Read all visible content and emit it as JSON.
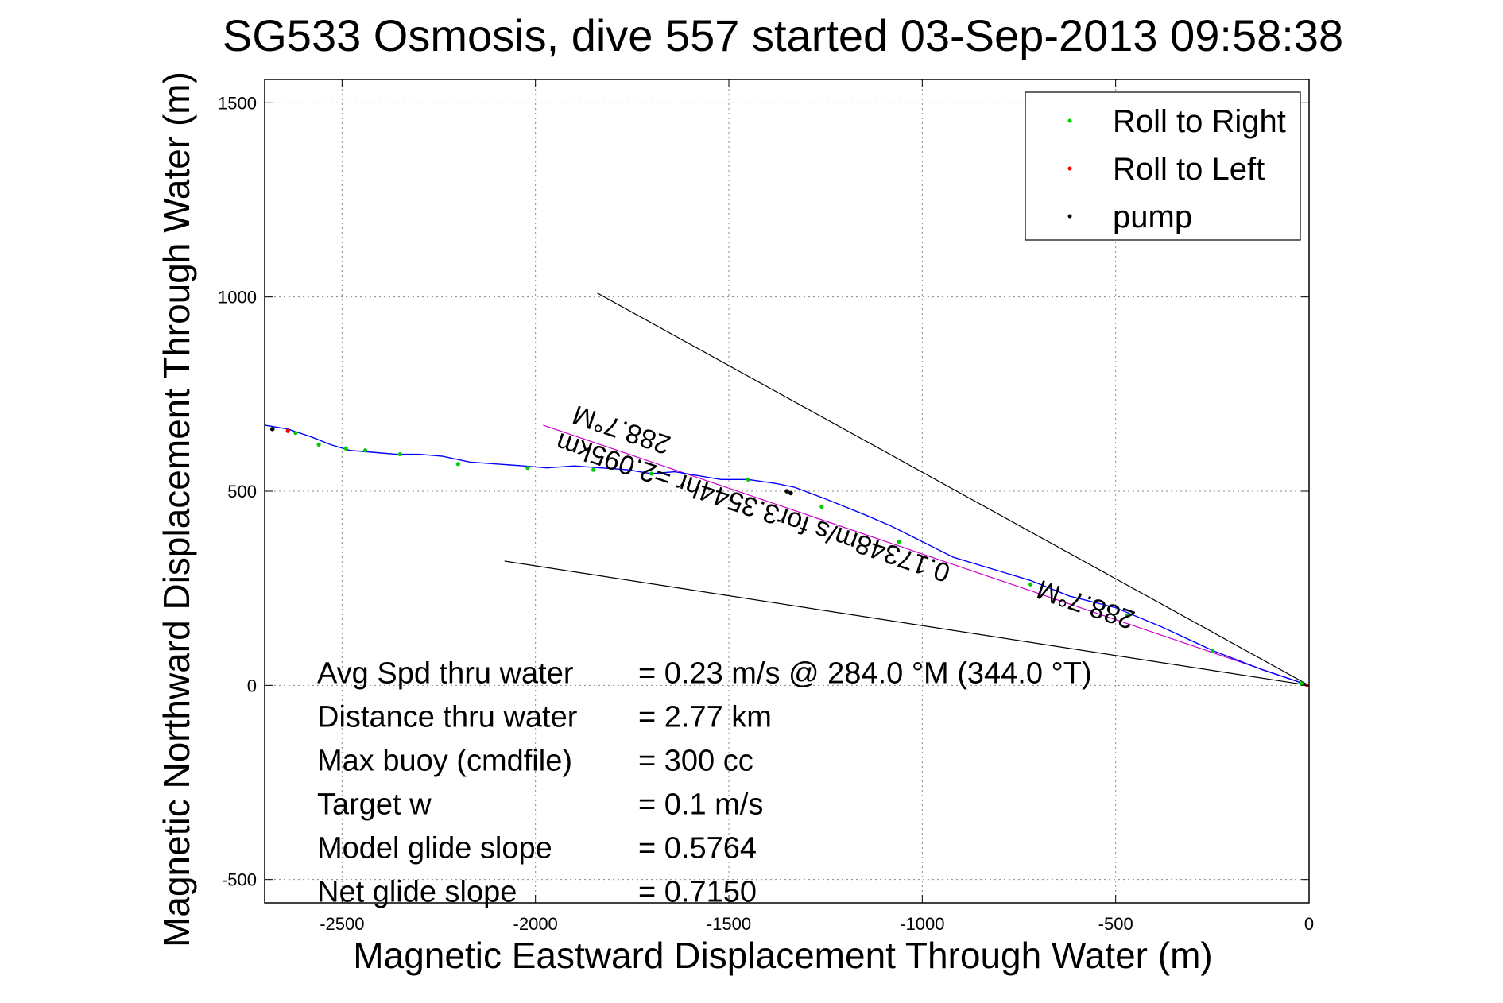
{
  "chart_data": {
    "type": "line",
    "title": "SG533 Osmosis, dive 557 started 03-Sep-2013 09:58:38",
    "xlabel": "Magnetic Eastward Displacement Through Water (m)",
    "ylabel": "Magnetic Northward Displacement Through Water (m)",
    "xlim": [
      -2700,
      0
    ],
    "ylim": [
      -560,
      1560
    ],
    "xticks": [
      -2500,
      -2000,
      -1500,
      -1000,
      -500,
      0
    ],
    "yticks": [
      -500,
      0,
      500,
      1000,
      1500
    ],
    "grid": true,
    "legend_position": "top-right",
    "legend": [
      {
        "label": "Roll to Right",
        "color": "#00cc00"
      },
      {
        "label": "Roll to Left",
        "color": "#ff0000"
      },
      {
        "label": "pump",
        "color": "#000000"
      }
    ],
    "track": {
      "color": "#0000ff",
      "x": [
        0,
        -120,
        -250,
        -380,
        -500,
        -620,
        -720,
        -820,
        -920,
        -1000,
        -1080,
        -1150,
        -1250,
        -1330,
        -1380,
        -1450,
        -1520,
        -1580,
        -1640,
        -1700,
        -1760,
        -1830,
        -1900,
        -1970,
        -2030,
        -2100,
        -2170,
        -2240,
        -2300,
        -2360,
        -2420,
        -2480,
        -2530,
        -2580,
        -2640,
        -2700
      ],
      "y": [
        0,
        40,
        90,
        150,
        200,
        230,
        270,
        300,
        330,
        370,
        410,
        440,
        480,
        510,
        520,
        530,
        530,
        540,
        550,
        545,
        555,
        560,
        565,
        560,
        565,
        570,
        575,
        590,
        595,
        595,
        600,
        605,
        620,
        640,
        660,
        670
      ]
    },
    "roll_to_right_points": {
      "x": [
        -20,
        -250,
        -470,
        -720,
        -1060,
        -1260,
        -1450,
        -1700,
        -1850,
        -2020,
        -2200,
        -2350,
        -2440,
        -2490,
        -2560,
        -2620
      ],
      "y": [
        5,
        90,
        180,
        260,
        370,
        460,
        530,
        545,
        555,
        560,
        570,
        595,
        605,
        610,
        620,
        650
      ]
    },
    "roll_to_left_points": {
      "x": [
        -5,
        -2640
      ],
      "y": [
        0,
        655
      ]
    },
    "pump_points": {
      "x": [
        -1340,
        -1350,
        -2680
      ],
      "y": [
        495,
        500,
        660
      ]
    },
    "lines": [
      {
        "name": "heading-line",
        "color": "#cc00cc",
        "x": [
          0,
          -1980
        ],
        "y": [
          0,
          670
        ]
      },
      {
        "name": "upper-bound",
        "color": "#000000",
        "x": [
          0,
          -1840
        ],
        "y": [
          0,
          1010
        ]
      },
      {
        "name": "lower-bound",
        "color": "#000000",
        "x": [
          0,
          -2080
        ],
        "y": [
          0,
          320
        ]
      }
    ],
    "rotated_labels": [
      {
        "text": "288.7°M",
        "x": -1770,
        "y": 680
      },
      {
        "text": "0.17348m/s for3.3544hr =2.095km",
        "x": -1430,
        "y": 480
      },
      {
        "text": "288.7°M",
        "x": -570,
        "y": 230
      }
    ],
    "annotations": [
      {
        "label": "Avg Spd thru water",
        "value": "=  0.23 m/s @ 284.0 °M (344.0 °T)"
      },
      {
        "label": "Distance thru water",
        "value": "=  2.77 km"
      },
      {
        "label": "Max buoy (cmdfile)",
        "value": "= 300 cc"
      },
      {
        "label": "Target w",
        "value": "= 0.1 m/s"
      },
      {
        "label": "Model glide slope",
        "value": "= 0.5764"
      },
      {
        "label": "Net glide slope",
        "value": "= 0.7150"
      }
    ]
  }
}
